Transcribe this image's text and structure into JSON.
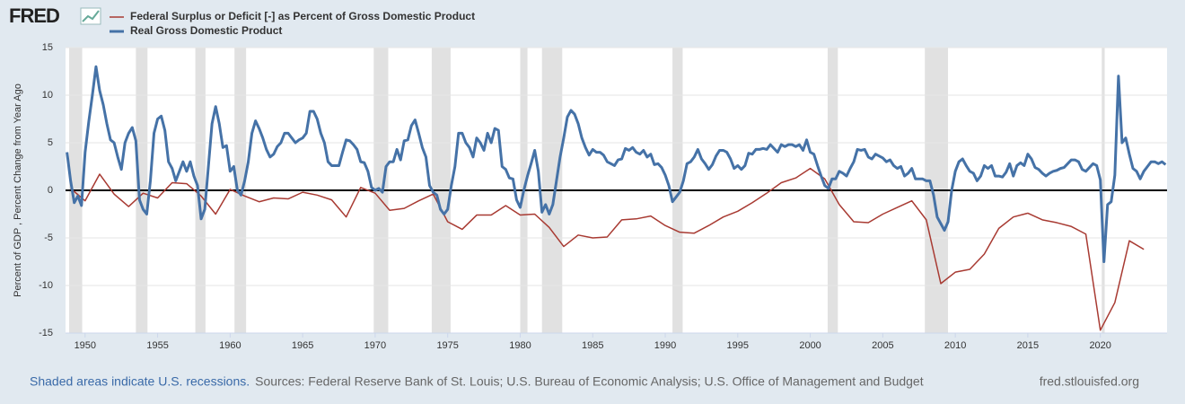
{
  "chart_data": {
    "type": "line",
    "logo": "FRED",
    "ylabel": "Percent of GDP , Percent Change from Year Ago",
    "recession_note": "Shaded areas indicate U.S. recessions.",
    "sources": "Sources: Federal Reserve Bank of St. Louis; U.S. Bureau of Economic Analysis; U.S. Office of Management and Budget",
    "site": "fred.stlouisfed.org",
    "xlim": [
      1948.65,
      2024.6
    ],
    "ylim": [
      -15,
      15
    ],
    "xticks": [
      1950,
      1955,
      1960,
      1965,
      1970,
      1975,
      1980,
      1985,
      1990,
      1995,
      2000,
      2005,
      2010,
      2015,
      2020
    ],
    "yticks": [
      -15,
      -10,
      -5,
      0,
      5,
      10,
      15
    ],
    "grid": true,
    "recession_color": "#e1e1e1",
    "recessions": [
      [
        1948.9,
        1949.8
      ],
      [
        1953.5,
        1954.3
      ],
      [
        1957.6,
        1958.3
      ],
      [
        1960.3,
        1961.1
      ],
      [
        1969.9,
        1970.9
      ],
      [
        1973.9,
        1975.2
      ],
      [
        1980.0,
        1980.5
      ],
      [
        1981.5,
        1982.9
      ],
      [
        1990.5,
        1991.2
      ],
      [
        2001.2,
        2001.9
      ],
      [
        2007.9,
        2009.5
      ],
      [
        2020.1,
        2020.3
      ]
    ],
    "series": [
      {
        "name": "Federal Surplus or Deficit [-] as Percent of Gross Domestic Product",
        "color": "#a83a32",
        "width": 1.5,
        "x": [
          1949,
          1950,
          1951,
          1952,
          1953,
          1954,
          1955,
          1956,
          1957,
          1958,
          1959,
          1960,
          1961,
          1962,
          1963,
          1964,
          1965,
          1966,
          1967,
          1968,
          1969,
          1970,
          1971,
          1972,
          1973,
          1974,
          1975,
          1976,
          1977,
          1978,
          1979,
          1980,
          1981,
          1982,
          1983,
          1984,
          1985,
          1986,
          1987,
          1988,
          1989,
          1990,
          1991,
          1992,
          1993,
          1994,
          1995,
          1996,
          1997,
          1998,
          1999,
          2000,
          2001,
          2002,
          2003,
          2004,
          2005,
          2006,
          2007,
          2008,
          2009,
          2010,
          2011,
          2012,
          2013,
          2014,
          2015,
          2016,
          2017,
          2018,
          2019,
          2020,
          2021,
          2022,
          2023
        ],
        "values": [
          0.2,
          -1.1,
          1.7,
          -0.4,
          -1.7,
          -0.3,
          -0.8,
          0.8,
          0.7,
          -0.6,
          -2.5,
          0.1,
          -0.6,
          -1.2,
          -0.8,
          -0.9,
          -0.2,
          -0.5,
          -1.0,
          -2.8,
          0.3,
          -0.3,
          -2.1,
          -1.9,
          -1.1,
          -0.4,
          -3.3,
          -4.1,
          -2.6,
          -2.6,
          -1.6,
          -2.6,
          -2.5,
          -3.9,
          -5.9,
          -4.7,
          -5.0,
          -4.9,
          -3.1,
          -3.0,
          -2.7,
          -3.7,
          -4.4,
          -4.5,
          -3.7,
          -2.8,
          -2.2,
          -1.3,
          -0.3,
          0.8,
          1.3,
          2.3,
          1.2,
          -1.5,
          -3.3,
          -3.4,
          -2.5,
          -1.8,
          -1.1,
          -3.1,
          -9.8,
          -8.6,
          -8.3,
          -6.7,
          -4.0,
          -2.8,
          -2.4,
          -3.1,
          -3.4,
          -3.8,
          -4.6,
          -14.7,
          -11.8,
          -5.3,
          -6.2
        ]
      },
      {
        "name": "Real Gross Domestic Product",
        "color": "#4572a7",
        "width": 3,
        "x": [
          1948.75,
          1949,
          1949.25,
          1949.5,
          1949.75,
          1950,
          1950.25,
          1950.5,
          1950.75,
          1951,
          1951.25,
          1951.5,
          1951.75,
          1952,
          1952.25,
          1952.5,
          1952.75,
          1953,
          1953.25,
          1953.5,
          1953.75,
          1954,
          1954.25,
          1954.5,
          1954.75,
          1955,
          1955.25,
          1955.5,
          1955.75,
          1956,
          1956.25,
          1956.5,
          1956.75,
          1957,
          1957.25,
          1957.5,
          1957.75,
          1958,
          1958.25,
          1958.5,
          1958.75,
          1959,
          1959.25,
          1959.5,
          1959.75,
          1960,
          1960.25,
          1960.5,
          1960.75,
          1961,
          1961.25,
          1961.5,
          1961.75,
          1962,
          1962.25,
          1962.5,
          1962.75,
          1963,
          1963.25,
          1963.5,
          1963.75,
          1964,
          1964.25,
          1964.5,
          1964.75,
          1965,
          1965.25,
          1965.5,
          1965.75,
          1966,
          1966.25,
          1966.5,
          1966.75,
          1967,
          1967.25,
          1967.5,
          1967.75,
          1968,
          1968.25,
          1968.5,
          1968.75,
          1969,
          1969.25,
          1969.5,
          1969.75,
          1970,
          1970.25,
          1970.5,
          1970.75,
          1971,
          1971.25,
          1971.5,
          1971.75,
          1972,
          1972.25,
          1972.5,
          1972.75,
          1973,
          1973.25,
          1973.5,
          1973.75,
          1974,
          1974.25,
          1974.5,
          1974.75,
          1975,
          1975.25,
          1975.5,
          1975.75,
          1976,
          1976.25,
          1976.5,
          1976.75,
          1977,
          1977.25,
          1977.5,
          1977.75,
          1978,
          1978.25,
          1978.5,
          1978.75,
          1979,
          1979.25,
          1979.5,
          1979.75,
          1980,
          1980.25,
          1980.5,
          1980.75,
          1981,
          1981.25,
          1981.5,
          1981.75,
          1982,
          1982.25,
          1982.5,
          1982.75,
          1983,
          1983.25,
          1983.5,
          1983.75,
          1984,
          1984.25,
          1984.5,
          1984.75,
          1985,
          1985.25,
          1985.5,
          1985.75,
          1986,
          1986.25,
          1986.5,
          1986.75,
          1987,
          1987.25,
          1987.5,
          1987.75,
          1988,
          1988.25,
          1988.5,
          1988.75,
          1989,
          1989.25,
          1989.5,
          1989.75,
          1990,
          1990.25,
          1990.5,
          1990.75,
          1991,
          1991.25,
          1991.5,
          1991.75,
          1992,
          1992.25,
          1992.5,
          1992.75,
          1993,
          1993.25,
          1993.5,
          1993.75,
          1994,
          1994.25,
          1994.5,
          1994.75,
          1995,
          1995.25,
          1995.5,
          1995.75,
          1996,
          1996.25,
          1996.5,
          1996.75,
          1997,
          1997.25,
          1997.5,
          1997.75,
          1998,
          1998.25,
          1998.5,
          1998.75,
          1999,
          1999.25,
          1999.5,
          1999.75,
          2000,
          2000.25,
          2000.5,
          2000.75,
          2001,
          2001.25,
          2001.5,
          2001.75,
          2002,
          2002.25,
          2002.5,
          2002.75,
          2003,
          2003.25,
          2003.5,
          2003.75,
          2004,
          2004.25,
          2004.5,
          2004.75,
          2005,
          2005.25,
          2005.5,
          2005.75,
          2006,
          2006.25,
          2006.5,
          2006.75,
          2007,
          2007.25,
          2007.5,
          2007.75,
          2008,
          2008.25,
          2008.5,
          2008.75,
          2009,
          2009.25,
          2009.5,
          2009.75,
          2010,
          2010.25,
          2010.5,
          2010.75,
          2011,
          2011.25,
          2011.5,
          2011.75,
          2012,
          2012.25,
          2012.5,
          2012.75,
          2013,
          2013.25,
          2013.5,
          2013.75,
          2014,
          2014.25,
          2014.5,
          2014.75,
          2015,
          2015.25,
          2015.5,
          2015.75,
          2016,
          2016.25,
          2016.5,
          2016.75,
          2017,
          2017.25,
          2017.5,
          2017.75,
          2018,
          2018.25,
          2018.5,
          2018.75,
          2019,
          2019.25,
          2019.5,
          2019.75,
          2020,
          2020.25,
          2020.5,
          2020.75,
          2021,
          2021.25,
          2021.5,
          2021.75,
          2022,
          2022.25,
          2022.5,
          2022.75,
          2023,
          2023.25,
          2023.5,
          2023.75,
          2024,
          2024.25,
          2024.5
        ],
        "values": [
          4,
          1.0,
          -1.3,
          -0.6,
          -1.6,
          4,
          7.2,
          10,
          13,
          10.5,
          9,
          7,
          5.3,
          5,
          3.5,
          2.2,
          5,
          6,
          6.6,
          5.2,
          -1,
          -2,
          -2.5,
          1,
          6,
          7.5,
          7.8,
          6.3,
          3,
          2.3,
          1,
          2,
          3,
          2,
          3,
          1.5,
          0.5,
          -3,
          -2,
          2.5,
          7,
          8.8,
          7,
          4.5,
          4.7,
          2,
          2.5,
          0,
          -0.5,
          1,
          3,
          6,
          7.3,
          6.5,
          5.5,
          4.3,
          3.5,
          3.8,
          4.6,
          5,
          6,
          6,
          5.5,
          5,
          5.3,
          5.5,
          6,
          8.3,
          8.3,
          7.5,
          6,
          5,
          3,
          2.6,
          2.6,
          2.6,
          4,
          5.3,
          5.2,
          4.8,
          4.3,
          3,
          2.9,
          2,
          0.3,
          0,
          0.2,
          -0.2,
          2.5,
          3,
          3,
          4.3,
          3.2,
          5.2,
          5.3,
          6.8,
          7.4,
          6,
          4.5,
          3.5,
          0.5,
          -0.2,
          -0.5,
          -2,
          -2.5,
          -2,
          0.5,
          2.5,
          6,
          6,
          5,
          4.5,
          3.5,
          5.5,
          5,
          4.2,
          6,
          5,
          6.5,
          6.3,
          2.5,
          2.2,
          1.3,
          1.2,
          -1,
          -1.8,
          0,
          1.5,
          2.8,
          4.2,
          2,
          -2.3,
          -1.5,
          -2.5,
          -1.5,
          1,
          3.5,
          5.5,
          7.7,
          8.4,
          8,
          7,
          5.5,
          4.5,
          3.7,
          4.3,
          4,
          4,
          3.7,
          3,
          2.8,
          2.6,
          3.2,
          3.3,
          4.4,
          4.2,
          4.5,
          4,
          3.8,
          4.2,
          3.5,
          3.8,
          2.7,
          2.8,
          2.4,
          1.6,
          0.5,
          -1.2,
          -0.7,
          -0.2,
          1,
          2.8,
          3,
          3.5,
          4.3,
          3.3,
          2.8,
          2.2,
          2.7,
          3.6,
          4.2,
          4.2,
          4,
          3.3,
          2.3,
          2.6,
          2.2,
          2.6,
          3.9,
          3.8,
          4.3,
          4.3,
          4.4,
          4.3,
          4.8,
          4.4,
          4,
          4.8,
          4.6,
          4.8,
          4.8,
          4.6,
          4.8,
          4.2,
          5.3,
          4,
          3.8,
          2.6,
          1.5,
          0.5,
          0.2,
          1.2,
          1.2,
          2,
          1.8,
          1.5,
          2.3,
          3,
          4.3,
          4.2,
          4.3,
          3.5,
          3.3,
          3.8,
          3.6,
          3.4,
          3,
          3.2,
          2.6,
          2.3,
          2.5,
          1.5,
          1.8,
          2.3,
          1.2,
          1.2,
          1.2,
          1,
          1,
          -0.5,
          -2.8,
          -3.5,
          -4.2,
          -3.3,
          0,
          2,
          3,
          3.3,
          2.6,
          2,
          1.8,
          1,
          1.5,
          2.6,
          2.3,
          2.6,
          1.5,
          1.5,
          1.4,
          1.9,
          2.8,
          1.5,
          2.6,
          2.9,
          2.6,
          3.8,
          3.3,
          2.4,
          2.2,
          1.8,
          1.5,
          1.8,
          2,
          2.1,
          2.3,
          2.4,
          2.8,
          3.2,
          3.2,
          3,
          2.2,
          2,
          2.4,
          2.8,
          2.6,
          1.1,
          -7.5,
          -1.5,
          -1.2,
          1.6,
          12,
          5,
          5.5,
          3.8,
          2.3,
          2,
          1.2,
          2,
          2.5,
          3,
          3,
          2.8,
          3,
          2.7
        ]
      }
    ]
  }
}
